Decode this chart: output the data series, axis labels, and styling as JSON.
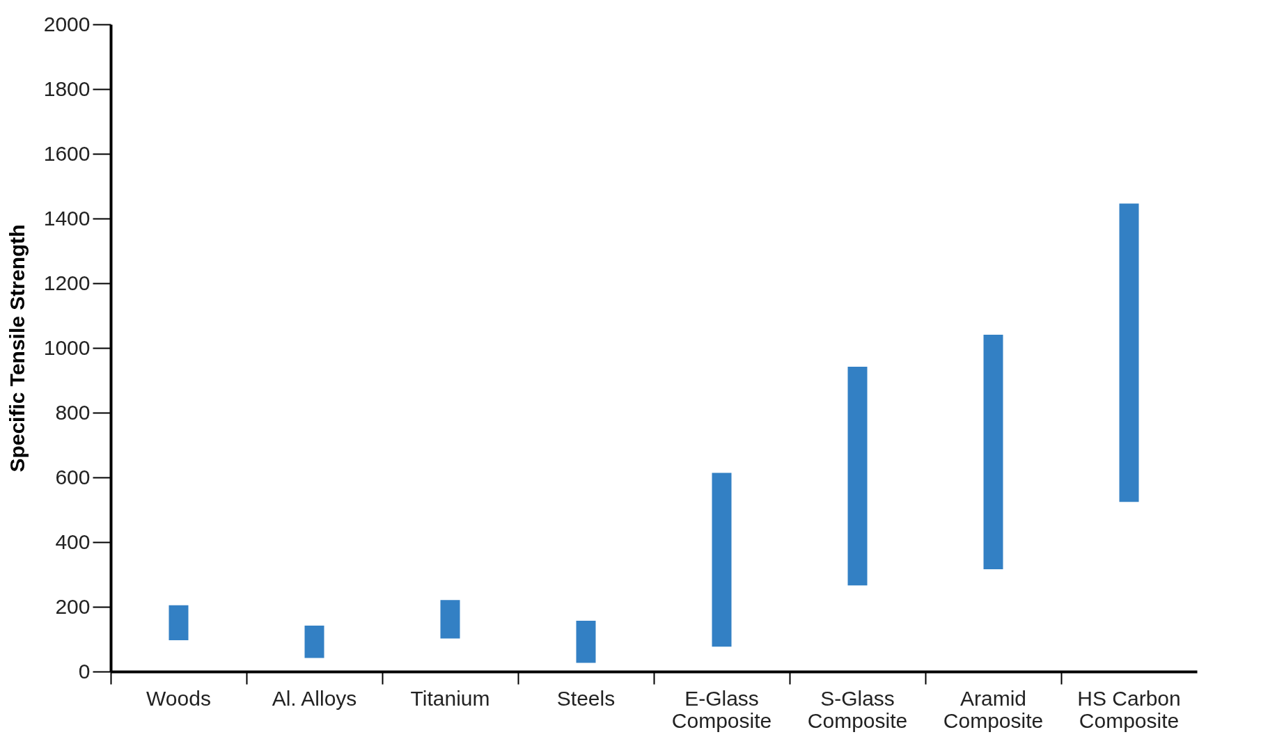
{
  "chart_data": {
    "type": "bar",
    "ylabel": "Specific Tensile Strength",
    "categories": [
      "Woods",
      "Al. Alloys",
      "Titanium",
      "Steels",
      "E-Glass\nComposite",
      "S-Glass\nComposite",
      "Aramid\nComposite",
      "HS Carbon\nComposite"
    ],
    "base": [
      97,
      42,
      102,
      27,
      77,
      266,
      316,
      524
    ],
    "values": [
      108,
      100,
      119,
      130,
      537,
      676,
      725,
      922
    ],
    "color": "#3380c4",
    "ylim": [
      0,
      2000
    ],
    "yticks": [
      0,
      200,
      400,
      600,
      800,
      1000,
      1200,
      1400,
      1600,
      1800,
      2000
    ],
    "grid": false
  }
}
